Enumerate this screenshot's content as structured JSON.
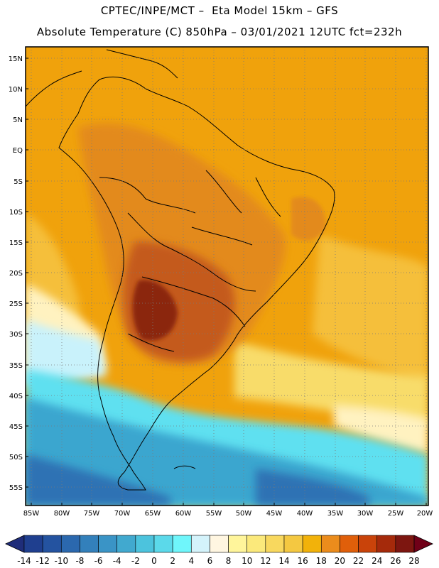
{
  "header": {
    "line1": "CPTEC/INPE/MCT –  Eta Model 15km – GFS",
    "line2": "Absolute Temperature (C) 850hPa – 03/01/2021 12UTC fct=232h"
  },
  "axes": {
    "lat_labels": [
      "15N",
      "10N",
      "5N",
      "EQ",
      "5S",
      "10S",
      "15S",
      "20S",
      "25S",
      "30S",
      "35S",
      "40S",
      "45S",
      "50S",
      "55S"
    ],
    "lon_labels": [
      "85W",
      "80W",
      "75W",
      "70W",
      "65W",
      "60W",
      "55W",
      "50W",
      "45W",
      "40W",
      "35W",
      "30W",
      "25W",
      "20W"
    ]
  },
  "colorbar": {
    "labels": [
      "-14",
      "-12",
      "-10",
      "-8",
      "-6",
      "-4",
      "-2",
      "0",
      "2",
      "4",
      "6",
      "8",
      "10",
      "12",
      "14",
      "16",
      "18",
      "20",
      "22",
      "24",
      "26",
      "28"
    ],
    "colors": [
      "#1f3f8f",
      "#2453a0",
      "#2b68ae",
      "#3380bb",
      "#3a94c6",
      "#41a9cf",
      "#4cc3dd",
      "#5bd9ea",
      "#6ff6fb",
      "#d4f3fb",
      "#fff6e1",
      "#fff59b",
      "#fbe97b",
      "#f8d85e",
      "#f4c841",
      "#f2b20a",
      "#eb8c1c",
      "#e05f0a",
      "#c9430a",
      "#a52a0b",
      "#7d1610"
    ],
    "under_color": "#1f2d7a",
    "over_color": "#700018"
  },
  "legend_palette": {
    "hot_core": "#8b2510",
    "hot": "#c45a1e",
    "warm": "#e38a1c",
    "orange": "#f0a20c",
    "gold": "#f5bf3a",
    "yellow": "#f8dc6a",
    "pale": "#fff2c0",
    "cyan_light": "#c9f2fb",
    "cyan": "#5fe0f0",
    "blue_mid": "#3aa6cf",
    "blue_dark": "#2e72b4"
  }
}
